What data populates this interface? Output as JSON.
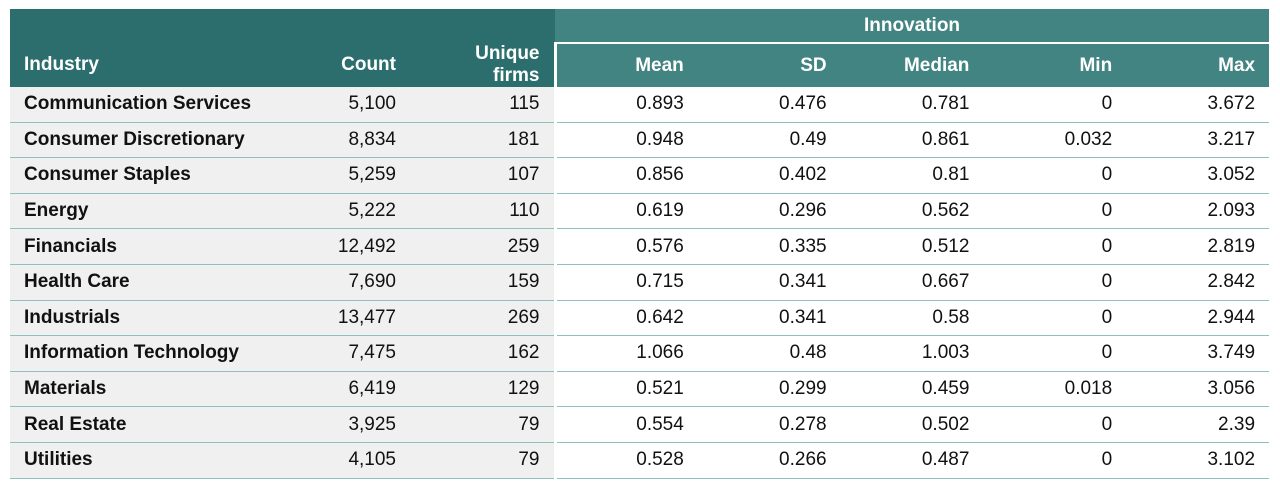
{
  "table": {
    "group_header": "Innovation",
    "headers": {
      "industry": "Industry",
      "count": "Count",
      "unique_firms": "Unique firms",
      "mean": "Mean",
      "sd": "SD",
      "median": "Median",
      "min": "Min",
      "max": "Max"
    },
    "rows": [
      {
        "industry": "Communication Services",
        "count": "5,100",
        "unique_firms": "115",
        "mean": "0.893",
        "sd": "0.476",
        "median": "0.781",
        "min": "0",
        "max": "3.672"
      },
      {
        "industry": "Consumer Discretionary",
        "count": "8,834",
        "unique_firms": "181",
        "mean": "0.948",
        "sd": "0.49",
        "median": "0.861",
        "min": "0.032",
        "max": "3.217"
      },
      {
        "industry": "Consumer Staples",
        "count": "5,259",
        "unique_firms": "107",
        "mean": "0.856",
        "sd": "0.402",
        "median": "0.81",
        "min": "0",
        "max": "3.052"
      },
      {
        "industry": "Energy",
        "count": "5,222",
        "unique_firms": "110",
        "mean": "0.619",
        "sd": "0.296",
        "median": "0.562",
        "min": "0",
        "max": "2.093"
      },
      {
        "industry": "Financials",
        "count": "12,492",
        "unique_firms": "259",
        "mean": "0.576",
        "sd": "0.335",
        "median": "0.512",
        "min": "0",
        "max": "2.819"
      },
      {
        "industry": "Health Care",
        "count": "7,690",
        "unique_firms": "159",
        "mean": "0.715",
        "sd": "0.341",
        "median": "0.667",
        "min": "0",
        "max": "2.842"
      },
      {
        "industry": "Industrials",
        "count": "13,477",
        "unique_firms": "269",
        "mean": "0.642",
        "sd": "0.341",
        "median": "0.58",
        "min": "0",
        "max": "2.944"
      },
      {
        "industry": "Information Technology",
        "count": "7,475",
        "unique_firms": "162",
        "mean": "1.066",
        "sd": "0.48",
        "median": "1.003",
        "min": "0",
        "max": "3.749"
      },
      {
        "industry": "Materials",
        "count": "6,419",
        "unique_firms": "129",
        "mean": "0.521",
        "sd": "0.299",
        "median": "0.459",
        "min": "0.018",
        "max": "3.056"
      },
      {
        "industry": "Real Estate",
        "count": "3,925",
        "unique_firms": "79",
        "mean": "0.554",
        "sd": "0.278",
        "median": "0.502",
        "min": "0",
        "max": "2.39"
      },
      {
        "industry": "Utilities",
        "count": "4,105",
        "unique_firms": "79",
        "mean": "0.528",
        "sd": "0.266",
        "median": "0.487",
        "min": "0",
        "max": "3.102"
      }
    ]
  }
}
